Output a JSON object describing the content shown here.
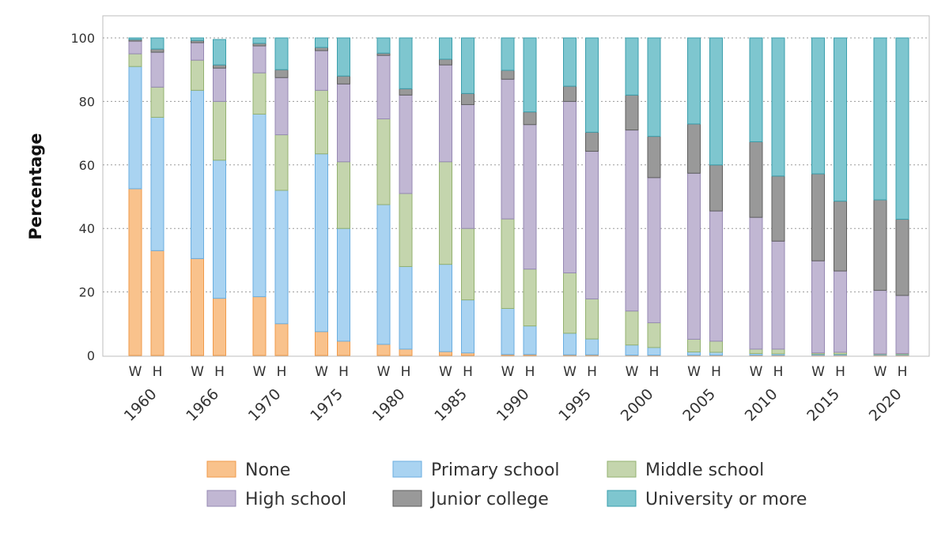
{
  "chart_data": {
    "type": "bar",
    "stacked": true,
    "ylabel": "Percentage",
    "ylim": [
      0,
      100
    ],
    "yticks": [
      0,
      20,
      40,
      60,
      80,
      100
    ],
    "grid": "horizontal dotted",
    "legend_position": "bottom",
    "years": [
      "1960",
      "1966",
      "1970",
      "1975",
      "1980",
      "1985",
      "1990",
      "1995",
      "2000",
      "2005",
      "2010",
      "2015",
      "2020"
    ],
    "sex_labels": [
      "W",
      "H"
    ],
    "series": [
      {
        "name": "None",
        "color": "#f9c28c",
        "stroke": "#f09a4a",
        "W": [
          52.5,
          30.5,
          18.5,
          7.5,
          3.5,
          1.2,
          0.3,
          0.2,
          0.1,
          0.1,
          0.1,
          0.1,
          0.1
        ],
        "H": [
          33.0,
          18.0,
          10.0,
          4.5,
          2.0,
          0.8,
          0.3,
          0.2,
          0.1,
          0.1,
          0.1,
          0.1,
          0.1
        ]
      },
      {
        "name": "Primary school",
        "color": "#a9d3f1",
        "stroke": "#6aaee0",
        "W": [
          38.5,
          53.0,
          57.5,
          56.0,
          44.0,
          27.5,
          14.5,
          6.8,
          3.2,
          1.0,
          0.5,
          0.3,
          0.2
        ],
        "H": [
          42.0,
          43.5,
          42.0,
          35.5,
          26.0,
          16.7,
          9.0,
          5.0,
          2.4,
          0.9,
          0.4,
          0.3,
          0.2
        ]
      },
      {
        "name": "Middle school",
        "color": "#c4d5ad",
        "stroke": "#93b170",
        "W": [
          4.0,
          9.5,
          13.0,
          20.0,
          27.0,
          32.3,
          28.2,
          19.0,
          10.7,
          4.0,
          1.4,
          0.4,
          0.2
        ],
        "H": [
          9.5,
          18.5,
          17.5,
          21.0,
          23.0,
          22.5,
          17.9,
          12.6,
          7.8,
          3.5,
          1.5,
          0.6,
          0.3
        ]
      },
      {
        "name": "High school",
        "color": "#c1b7d3",
        "stroke": "#9689b3",
        "W": [
          4.0,
          5.5,
          8.5,
          12.5,
          20.0,
          30.5,
          44.0,
          54.0,
          57.0,
          52.3,
          41.5,
          29.0,
          20.0
        ],
        "H": [
          11.0,
          10.5,
          18.0,
          24.5,
          31.0,
          39.0,
          45.5,
          46.5,
          45.7,
          41.0,
          34.0,
          25.6,
          18.3
        ]
      },
      {
        "name": "Junior college",
        "color": "#999999",
        "stroke": "#5e5e5e",
        "W": [
          0.5,
          0.7,
          0.8,
          1.0,
          0.7,
          1.8,
          2.8,
          4.8,
          11.0,
          15.5,
          23.8,
          27.4,
          28.5
        ],
        "H": [
          1.0,
          1.0,
          2.5,
          2.5,
          2.0,
          3.5,
          4.0,
          6.0,
          13.0,
          14.5,
          20.5,
          22.0,
          24.0
        ]
      },
      {
        "name": "University or more",
        "color": "#7ec6cf",
        "stroke": "#3b9fac",
        "W": [
          0.5,
          0.8,
          1.7,
          3.0,
          4.8,
          6.7,
          10.2,
          15.2,
          18.0,
          27.1,
          32.7,
          42.8,
          51.0
        ],
        "H": [
          3.5,
          8.0,
          10.0,
          12.0,
          16.0,
          17.5,
          23.3,
          29.7,
          31.0,
          40.0,
          43.5,
          51.4,
          57.1
        ]
      }
    ]
  }
}
